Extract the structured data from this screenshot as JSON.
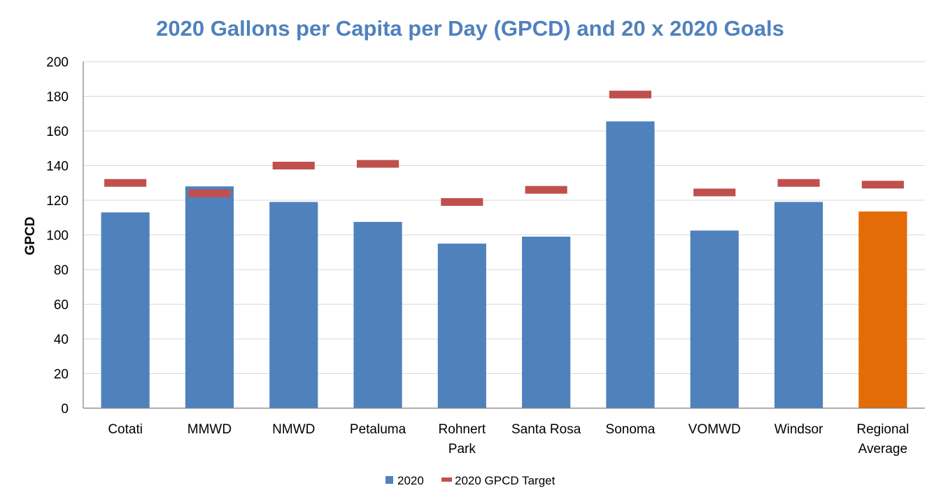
{
  "chart_data": {
    "type": "bar",
    "title": "2020 Gallons per Capita per Day (GPCD) and 20 x 2020 Goals",
    "ylabel": "GPCD",
    "xlabel": "",
    "ylim": [
      0,
      200
    ],
    "yticks": [
      "0",
      "20",
      "40",
      "60",
      "80",
      "100",
      "120",
      "140",
      "160",
      "180",
      "200"
    ],
    "grid": true,
    "legend_position": "bottom",
    "categories": [
      [
        "Cotati"
      ],
      [
        "MMWD"
      ],
      [
        "NMWD"
      ],
      [
        "Petaluma"
      ],
      [
        "Rohnert",
        "Park"
      ],
      [
        "Santa Rosa"
      ],
      [
        "Sonoma"
      ],
      [
        "VOMWD"
      ],
      [
        "Windsor"
      ],
      [
        "Regional",
        "Average"
      ]
    ],
    "series": [
      {
        "name": "2020",
        "kind": "bar",
        "color": "#4f81bd",
        "highlight_color": "#e36c09",
        "highlight_index": 9,
        "values": [
          113,
          128,
          119,
          107.5,
          95,
          99,
          165.5,
          102.5,
          119,
          113.5
        ]
      },
      {
        "name": "2020 GPCD Target",
        "kind": "marker",
        "color": "#c0504d",
        "values": [
          130,
          124,
          140,
          141,
          119,
          126,
          181,
          124.5,
          130,
          129
        ]
      }
    ]
  }
}
